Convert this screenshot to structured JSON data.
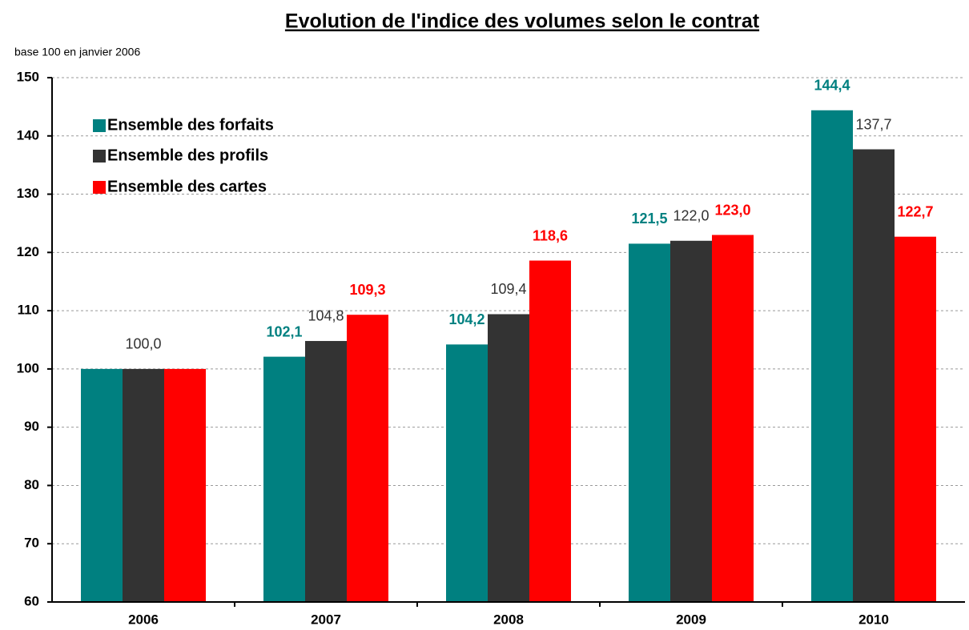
{
  "chart_data": {
    "type": "bar",
    "title": "Evolution de l'indice des volumes selon le contrat",
    "subtitle": "base 100 en janvier 2006",
    "categories": [
      "2006",
      "2007",
      "2008",
      "2009",
      "2010"
    ],
    "series": [
      {
        "name": "Ensemble des forfaits",
        "color": "#008080",
        "values": [
          100.0,
          102.1,
          104.2,
          121.5,
          144.4
        ],
        "value_labels": [
          null,
          "102,1",
          "104,2",
          "121,5",
          "144,4"
        ]
      },
      {
        "name": "Ensemble des profils",
        "color": "#333333",
        "values": [
          100.0,
          104.8,
          109.4,
          122.0,
          137.7
        ],
        "value_labels": [
          "100,0",
          "104,8",
          "109,4",
          "122,0",
          "137,7"
        ]
      },
      {
        "name": "Ensemble des cartes",
        "color": "#ff0000",
        "values": [
          100.0,
          109.3,
          118.6,
          123.0,
          122.7
        ],
        "value_labels": [
          null,
          "109,3",
          "118,6",
          "123,0",
          "122,7"
        ]
      }
    ],
    "ylim": [
      60,
      150
    ],
    "yticks": [
      60,
      70,
      80,
      90,
      100,
      110,
      120,
      130,
      140,
      150
    ],
    "grid": true,
    "legend": "top-left"
  }
}
